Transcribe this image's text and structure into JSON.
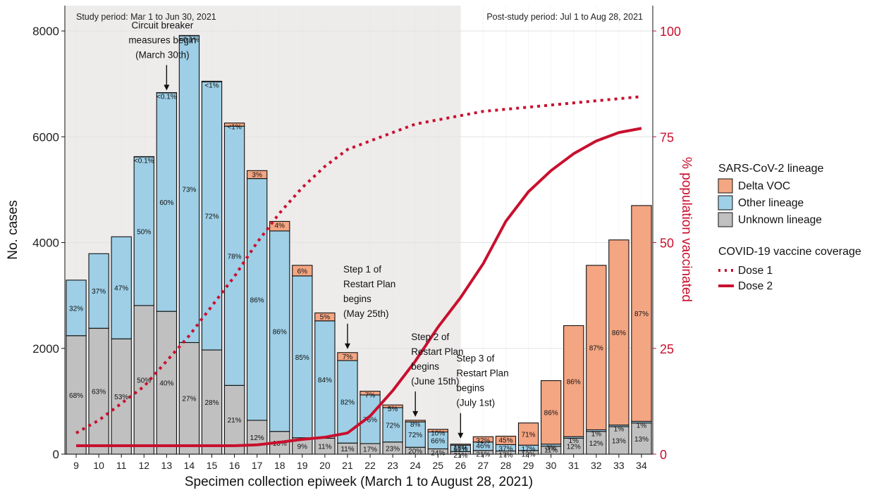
{
  "chart_data": {
    "type": "bar",
    "xlabel": "Specimen collection epiweek (March 1 to August 28, 2021)",
    "ylabel": "No. cases",
    "y2label": "% population vaccinated",
    "ylim": [
      0,
      8000
    ],
    "y2lim": [
      0,
      100
    ],
    "yticks": [
      "0",
      "2000",
      "4000",
      "6000",
      "8000"
    ],
    "y2ticks": [
      "0",
      "25",
      "50",
      "75",
      "100"
    ],
    "grid": true,
    "legend_position": "right",
    "categories": [
      "9",
      "10",
      "11",
      "12",
      "13",
      "14",
      "15",
      "16",
      "17",
      "18",
      "19",
      "20",
      "21",
      "22",
      "23",
      "24",
      "25",
      "26",
      "27",
      "28",
      "29",
      "30",
      "31",
      "32",
      "33",
      "34"
    ],
    "series": [
      {
        "name": "Unknown lineage",
        "color": "#c0c0c0",
        "values": [
          2240,
          2380,
          2180,
          2810,
          2700,
          2110,
          1970,
          1300,
          640,
          430,
          310,
          300,
          210,
          200,
          230,
          130,
          100,
          50,
          70,
          60,
          70,
          150,
          300,
          430,
          520,
          590
        ],
        "labels": [
          "68%",
          "63%",
          "53%",
          "50%",
          "40%",
          "27%",
          "28%",
          "21%",
          "12%",
          "10%",
          "9%",
          "11%",
          "11%",
          "17%",
          "23%",
          "20%",
          "24%",
          "21%",
          "21%",
          "17%",
          "12%",
          "11%",
          "12%",
          "12%",
          "13%",
          "13%"
        ]
      },
      {
        "name": "Other lineage",
        "color": "#9ecfe6",
        "values": [
          1050,
          1410,
          1930,
          2810,
          4130,
          5800,
          5070,
          4900,
          4570,
          3790,
          3060,
          2220,
          1560,
          920,
          650,
          480,
          320,
          120,
          160,
          120,
          100,
          40,
          30,
          30,
          30,
          30
        ],
        "labels": [
          "32%",
          "37%",
          "47%",
          "50%",
          "60%",
          "73%",
          "72%",
          "78%",
          "86%",
          "86%",
          "85%",
          "84%",
          "82%",
          "76%",
          "72%",
          "72%",
          "66%",
          "61%",
          "46%",
          "37%",
          "17%",
          "3%",
          "1%",
          "1%",
          "1%",
          "1%"
        ]
      },
      {
        "name": "Delta VOC",
        "color": "#f4a582",
        "values": [
          0,
          0,
          0,
          5,
          5,
          5,
          10,
          60,
          150,
          180,
          200,
          150,
          150,
          70,
          50,
          30,
          50,
          20,
          100,
          160,
          420,
          1200,
          2100,
          3110,
          3500,
          4080
        ],
        "labels": [
          "",
          "",
          "",
          "<0.1%",
          "<0.1%",
          "<0.1%",
          "<1%",
          "<1%",
          "3%",
          "4%",
          "6%",
          "5%",
          "7%",
          "7%",
          "5%",
          "8%",
          "10%",
          "18%",
          "32%",
          "45%",
          "71%",
          "86%",
          "86%",
          "87%",
          "86%",
          "87%"
        ]
      }
    ],
    "lines": [
      {
        "name": "Dose 1",
        "style": "dotted",
        "color": "#c8102e",
        "values": [
          5,
          8,
          12,
          16,
          22,
          28,
          35,
          42,
          50,
          57,
          63,
          68,
          72,
          74,
          76,
          78,
          79,
          80,
          81,
          81.5,
          82,
          82.5,
          83,
          83.5,
          84,
          84.5
        ],
        "x": [
          9,
          10,
          11,
          12,
          13,
          14,
          15,
          16,
          17,
          18,
          19,
          20,
          21,
          22,
          23,
          24,
          25,
          26,
          27,
          28,
          29,
          30,
          31,
          32,
          33,
          34
        ]
      },
      {
        "name": "Dose 2",
        "style": "solid",
        "color": "#c8102e",
        "values": [
          2,
          2,
          2,
          2,
          2,
          2,
          2,
          2,
          2.2,
          2.8,
          3.5,
          4,
          5,
          9,
          15,
          22,
          30,
          37,
          45,
          55,
          62,
          67,
          71,
          74,
          76,
          77
        ],
        "x": [
          9,
          10,
          11,
          12,
          13,
          14,
          15,
          16,
          17,
          18,
          19,
          20,
          21,
          22,
          23,
          24,
          25,
          26,
          27,
          28,
          29,
          30,
          31,
          32,
          33,
          34
        ]
      }
    ],
    "study_period": {
      "text": "Study period: Mar 1 to Jun 30, 2021",
      "start": 8.5,
      "end": 26,
      "color": "#eeebeb"
    },
    "post_study_text": "Post-study period: Jul 1 to Aug 28, 2021",
    "annotations": [
      {
        "lines": [
          "Circuit breaker",
          "measures begin",
          "(March 30th)"
        ],
        "x": 13,
        "target": 6850
      },
      {
        "lines": [
          "Step 1 of",
          "Restart Plan",
          "begins",
          "(May 25th)"
        ],
        "x": 21,
        "target": 1960
      },
      {
        "lines": [
          "Step 2 of",
          "Restart Plan",
          "begins",
          "(June 15th)"
        ],
        "x": 24,
        "target": 680
      },
      {
        "lines": [
          "Step 3 of",
          "Restart Plan",
          "begins",
          "(July 1st)"
        ],
        "x": 26,
        "target": 270
      }
    ],
    "legend": {
      "fill_title": "SARS-CoV-2 lineage",
      "fill_items": [
        "Delta VOC",
        "Other lineage",
        "Unknown lineage"
      ],
      "line_title": "COVID-19 vaccine coverage",
      "line_items": [
        "Dose 1",
        "Dose 2"
      ]
    },
    "colors": {
      "accent": "#c8102e",
      "delta": "#f4a582",
      "other": "#9ecfe6",
      "unknown": "#c0c0c0",
      "grid": "#e2e2e2"
    }
  }
}
